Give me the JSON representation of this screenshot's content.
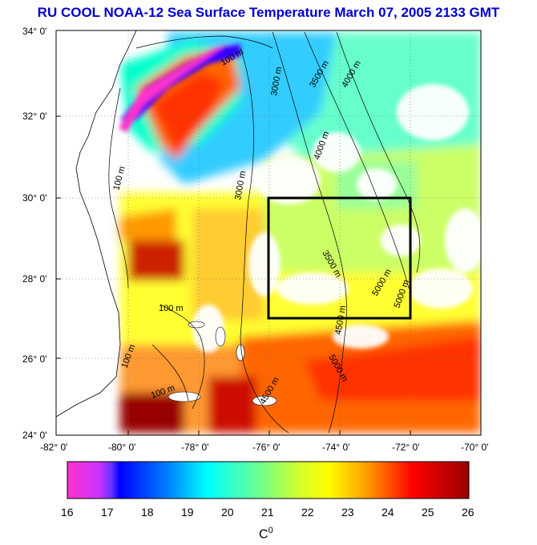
{
  "title": "RU COOL  NOAA-12 Sea Surface Temperature March 07, 2005 2133 GMT",
  "map": {
    "lat_ticks": [
      "34° 0'",
      "32° 0'",
      "30° 0'",
      "28° 0'",
      "26° 0'",
      "24° 0'"
    ],
    "lon_ticks": [
      "-82° 0'",
      "-80° 0'",
      "-78° 0'",
      "-76° 0'",
      "-74° 0'",
      "-72° 0'",
      "-70° 0'"
    ],
    "lat_range": [
      24,
      34
    ],
    "lon_range": [
      -82,
      -70
    ],
    "study_box": {
      "lon_min": -76,
      "lon_max": -72,
      "lat_min": 27,
      "lat_max": 30
    },
    "contour_labels": [
      "100 m",
      "100 m",
      "100 m",
      "100 m",
      "3000 m",
      "3500 m",
      "4000 m",
      "4000 m",
      "3000 m",
      "3500 m",
      "4500 m",
      "5000 m",
      "4500 m",
      "5000 m",
      "5000 m",
      "100 m"
    ]
  },
  "colorbar": {
    "ticks": [
      "16",
      "17",
      "18",
      "19",
      "20",
      "21",
      "22",
      "23",
      "24",
      "25",
      "26"
    ],
    "unit": "C",
    "unit_sup": "0",
    "colors": [
      "#ff33cc",
      "#9933ff",
      "#0000ff",
      "#0099ff",
      "#00ffff",
      "#66ff99",
      "#ccff33",
      "#ffff00",
      "#ff9900",
      "#ff0000",
      "#990000"
    ]
  }
}
